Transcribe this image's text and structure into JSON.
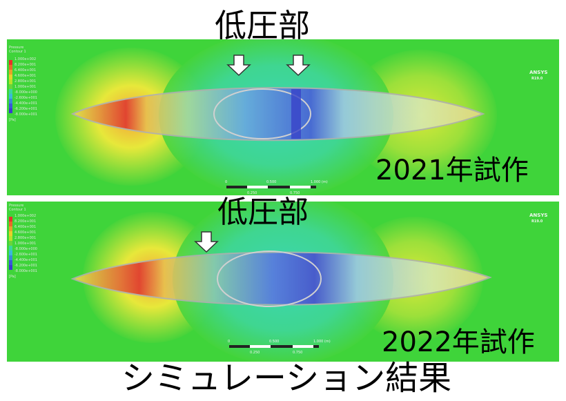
{
  "top_label": "低圧部",
  "panels": [
    {
      "label_low_pressure": "低圧部",
      "label_prototype": "2021年試作",
      "legend_title": "Pressure",
      "legend_subtitle": "Contour 1",
      "legend_values": [
        "1.000e+002",
        "8.200e+001",
        "6.400e+001",
        "4.600e+001",
        "2.800e+001",
        "1.000e+001",
        "-8.000e+000",
        "-2.600e+001",
        "-4.400e+001",
        "-6.200e+001",
        "-8.000e+001"
      ],
      "legend_unit": "[Pa]",
      "scale_ticks": [
        "0",
        "0.500",
        "1.000 (m)"
      ],
      "scale_minor": [
        "0.250",
        "0.750"
      ],
      "logo": "ANSYS",
      "logo_sub": "R19.0"
    },
    {
      "label_low_pressure": "低圧部",
      "label_prototype": "2022年試作",
      "legend_title": "Pressure",
      "legend_subtitle": "Contour 1",
      "legend_values": [
        "1.000e+002",
        "8.200e+001",
        "6.400e+001",
        "4.600e+001",
        "2.800e+001",
        "1.000e+001",
        "-8.000e+000",
        "-2.600e+001",
        "-4.400e+001",
        "-6.200e+001",
        "-8.000e+001"
      ],
      "legend_unit": "[Pa]",
      "scale_ticks": [
        "0",
        "0.500",
        "1.000 (m)"
      ],
      "scale_minor": [
        "0.250",
        "0.750"
      ],
      "logo": "ANSYS",
      "logo_sub": "R19.0"
    }
  ],
  "caption": "シミュレーション結果",
  "colors": {
    "background": "#3fd43a",
    "high": "#e8302a",
    "low": "#3c3fd8"
  }
}
